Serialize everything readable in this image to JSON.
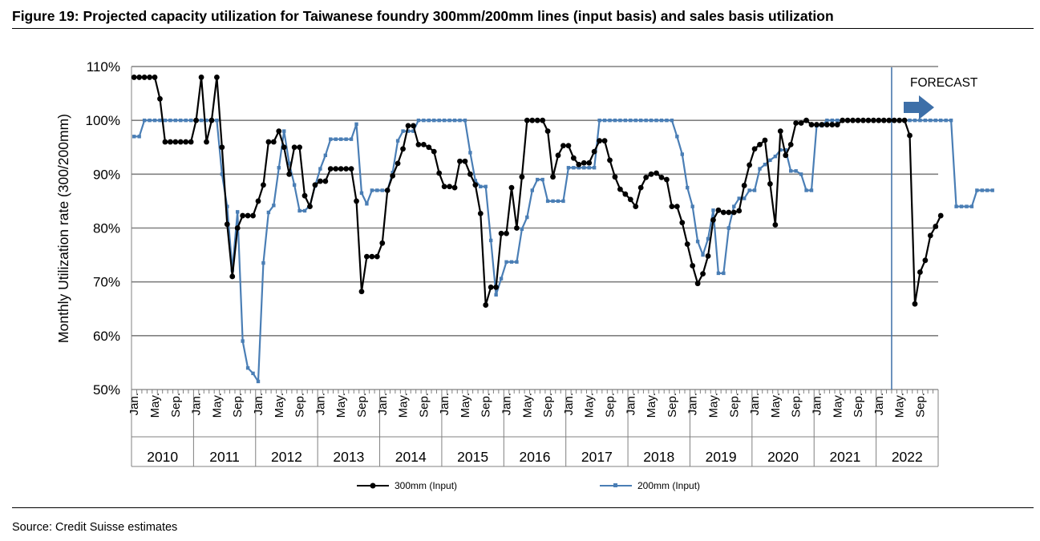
{
  "figure": {
    "title": "Figure 19: Projected capacity utilization for Taiwanese foundry 300mm/200mm lines (input basis) and sales basis utilization",
    "source": "Source: Credit Suisse estimates"
  },
  "chart_data": {
    "type": "line",
    "ylabel": "Monthly Utilization rate (300/200mm)",
    "ylim": [
      50,
      110
    ],
    "y_ticks": [
      "50%",
      "60%",
      "70%",
      "80%",
      "90%",
      "100%",
      "110%"
    ],
    "month_labels": [
      "Jan.",
      "May.",
      "Sep."
    ],
    "years": [
      "2010",
      "2011",
      "2012",
      "2013",
      "2014",
      "2015",
      "2016",
      "2017",
      "2018",
      "2019",
      "2020",
      "2021",
      "2022"
    ],
    "forecast_label": "FORECAST",
    "forecast_start": "2022-04",
    "legend_position": "bottom",
    "grid": true,
    "colors": {
      "s300": "#000000",
      "s200": "#4a7eb5",
      "arrow": "#3d6fa8",
      "grid": "#808080"
    },
    "series": [
      {
        "name": "300mm (Input)",
        "values": [
          108,
          108,
          108,
          108,
          108,
          104,
          96,
          96,
          96,
          96,
          96,
          96,
          100,
          108,
          96,
          100,
          108,
          95,
          80.7,
          71,
          80,
          82.3,
          82.3,
          82.3,
          85,
          88,
          96,
          96,
          98,
          95,
          90,
          95,
          95,
          86,
          84,
          88,
          88.7,
          88.7,
          91,
          91,
          91,
          91,
          91,
          85,
          68.2,
          74.7,
          74.7,
          74.7,
          77.2,
          87,
          89.7,
          92,
          94.7,
          99,
          99,
          95.5,
          95.5,
          95,
          94.2,
          90.2,
          87.7,
          87.7,
          87.5,
          92.4,
          92.4,
          90,
          88,
          82.7,
          65.7,
          69,
          69,
          79,
          79,
          87.5,
          80,
          89.5,
          100,
          100,
          100,
          100,
          98,
          89.5,
          93.5,
          95.3,
          95.3,
          93,
          91.8,
          92.1,
          92.1,
          94.2,
          96.2,
          96.2,
          92.6,
          89.5,
          87.2,
          86.3,
          85.3,
          84,
          87.5,
          89.4,
          90,
          90.2,
          89.4,
          89,
          84,
          84,
          81,
          77,
          73,
          69.7,
          71.5,
          74.8,
          81.5,
          83.3,
          82.9,
          82.9,
          82.9,
          83.2,
          87.9,
          91.7,
          94.7,
          95.5,
          96.3,
          88.2,
          80.6,
          98,
          93.5,
          95.5,
          99.5,
          99.5,
          100,
          99.2,
          99.2,
          99.2,
          99.2,
          99.2,
          99.2,
          100,
          100,
          100,
          100,
          100,
          100,
          100,
          100,
          100,
          100,
          100,
          100,
          100,
          97.2,
          65.9,
          71.8,
          74,
          78.6,
          80.3,
          82.3
        ]
      },
      {
        "name": "200mm (Input)",
        "values": [
          97,
          97,
          100,
          100,
          100,
          100,
          100,
          100,
          100,
          100,
          100,
          100,
          100,
          100,
          100,
          100,
          100,
          90,
          84,
          72.2,
          83,
          59,
          54,
          53,
          51.5,
          73.5,
          82.9,
          84.2,
          91.2,
          98,
          92,
          88,
          83.2,
          83.2,
          84.2,
          87.8,
          91,
          93.5,
          96.5,
          96.5,
          96.5,
          96.5,
          96.5,
          99.3,
          86.5,
          84.5,
          87,
          87,
          87,
          87,
          90.3,
          96.2,
          98,
          98,
          98,
          100,
          100,
          100,
          100,
          100,
          100,
          100,
          100,
          100,
          100,
          94,
          88.8,
          87.7,
          87.7,
          77.7,
          67.6,
          70.6,
          73.7,
          73.7,
          73.7,
          79.8,
          82,
          87,
          89,
          89,
          85,
          85,
          85,
          85,
          91.2,
          91.2,
          91.2,
          91.2,
          91.2,
          91.2,
          100,
          100,
          100,
          100,
          100,
          100,
          100,
          100,
          100,
          100,
          100,
          100,
          100,
          100,
          100,
          97,
          93.7,
          87.5,
          84,
          77.5,
          75,
          78,
          83.3,
          71.6,
          71.6,
          80,
          84,
          85.5,
          85.5,
          87,
          87,
          91,
          91.8,
          92.6,
          93.3,
          94.5,
          94.5,
          90.6,
          90.6,
          90,
          87,
          87,
          99,
          99,
          100,
          100,
          100,
          100,
          100,
          100,
          100,
          100,
          100,
          100,
          100,
          100,
          100,
          100,
          100,
          100,
          100,
          100,
          100,
          100,
          100,
          100,
          100,
          100,
          100,
          84,
          84,
          84,
          84,
          87,
          87,
          87,
          87
        ]
      }
    ]
  }
}
